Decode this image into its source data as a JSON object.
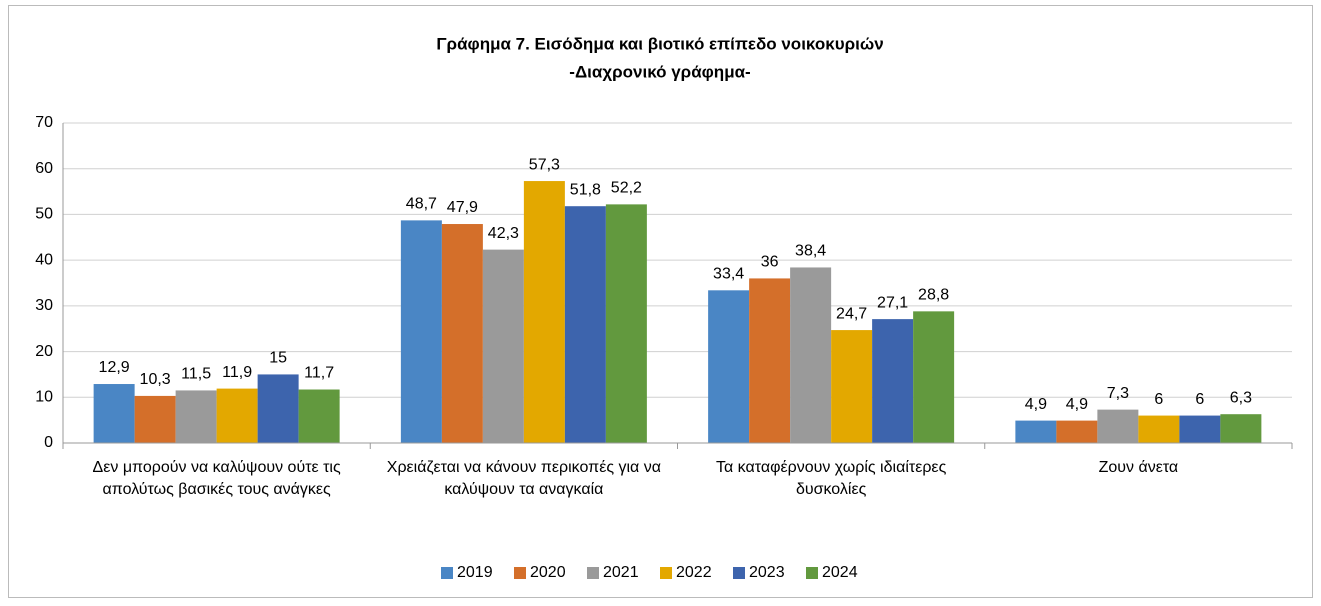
{
  "chart_data": {
    "type": "bar",
    "title": "Γράφημα 7. Εισόδημα και βιοτικό επίπεδο νοικοκυριών",
    "subtitle": "-Διαχρονικό γράφημα-",
    "categories": [
      "Δεν μπορούν να καλύψουν ούτε τις απολύτως βασικές τους ανάγκες",
      "Χρειάζεται να κάνουν περικοπές για να καλύψουν τα αναγκαία",
      "Τα καταφέρνουν χωρίς ιδιαίτερες δυσκολίες",
      "Ζουν άνετα"
    ],
    "series": [
      {
        "name": "2019",
        "color": "#4a86c5",
        "values": [
          12.9,
          48.7,
          33.4,
          4.9
        ],
        "value_labels": [
          "12,9",
          "48,7",
          "33,4",
          "4,9"
        ]
      },
      {
        "name": "2020",
        "color": "#d46f2a",
        "values": [
          10.3,
          47.9,
          36,
          4.9
        ],
        "value_labels": [
          "10,3",
          "47,9",
          "36",
          "4,9"
        ]
      },
      {
        "name": "2021",
        "color": "#9a9a9a",
        "values": [
          11.5,
          42.3,
          38.4,
          7.3
        ],
        "value_labels": [
          "11,5",
          "42,3",
          "38,4",
          "7,3"
        ]
      },
      {
        "name": "2022",
        "color": "#e3a800",
        "values": [
          11.9,
          57.3,
          24.7,
          6
        ],
        "value_labels": [
          "11,9",
          "57,3",
          "24,7",
          "6"
        ]
      },
      {
        "name": "2023",
        "color": "#3d64ad",
        "values": [
          15,
          51.8,
          27.1,
          6
        ],
        "value_labels": [
          "15",
          "51,8",
          "27,1",
          "6"
        ]
      },
      {
        "name": "2024",
        "color": "#62993e",
        "values": [
          11.7,
          52.2,
          28.8,
          6.3
        ],
        "value_labels": [
          "11,7",
          "52,2",
          "28,8",
          "6,3"
        ]
      }
    ],
    "ylim": [
      0,
      70
    ],
    "yticks": [
      0,
      10,
      20,
      30,
      40,
      50,
      60,
      70
    ],
    "grid": true,
    "legend": "bottom"
  }
}
